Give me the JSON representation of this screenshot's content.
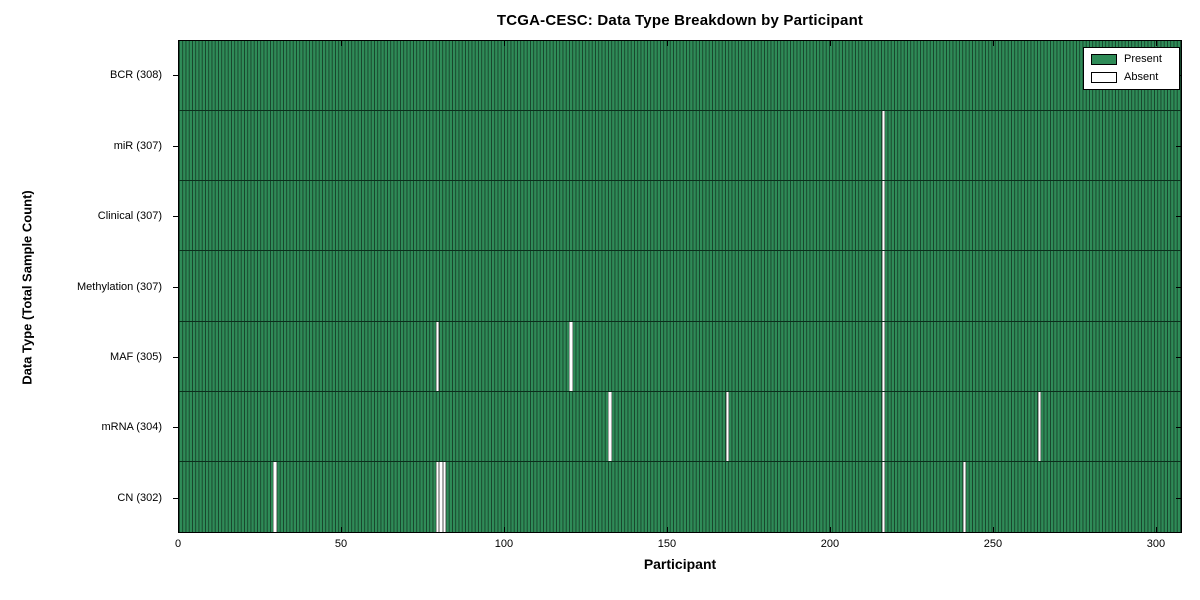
{
  "chart_data": {
    "type": "heatmap",
    "title": "TCGA-CESC: Data Type Breakdown by Participant",
    "xlabel": "Participant",
    "ylabel": "Data Type (Total Sample Count)",
    "xlim": [
      0,
      308
    ],
    "x_ticks": [
      0,
      50,
      100,
      150,
      200,
      250,
      300
    ],
    "total_participants": 308,
    "grid": false,
    "legend_position": "upper right",
    "legend": [
      {
        "label": "Present",
        "color": "#2e8b57"
      },
      {
        "label": "Absent",
        "color": "#ffffff"
      }
    ],
    "colors": {
      "present_fill": "#2e8b57",
      "bar_edge": "#123a24",
      "absent_fill": "#ffffff",
      "frame": "#000000",
      "text": "#000000",
      "background": "#ffffff"
    },
    "rows": [
      {
        "name": "BCR",
        "label": "BCR (308)",
        "present_count": 308,
        "absent_participants": []
      },
      {
        "name": "miR",
        "label": "miR (307)",
        "present_count": 307,
        "absent_participants": [
          216
        ]
      },
      {
        "name": "Clinical",
        "label": "Clinical (307)",
        "present_count": 307,
        "absent_participants": [
          216
        ]
      },
      {
        "name": "Methylation",
        "label": "Methylation (307)",
        "present_count": 307,
        "absent_participants": [
          216
        ]
      },
      {
        "name": "MAF",
        "label": "MAF (305)",
        "present_count": 305,
        "absent_participants": [
          79,
          120,
          216
        ]
      },
      {
        "name": "mRNA",
        "label": "mRNA (304)",
        "present_count": 304,
        "absent_participants": [
          132,
          168,
          216,
          264
        ]
      },
      {
        "name": "CN",
        "label": "CN (302)",
        "present_count": 302,
        "absent_participants": [
          29,
          79,
          80,
          81,
          216,
          241
        ]
      }
    ]
  }
}
